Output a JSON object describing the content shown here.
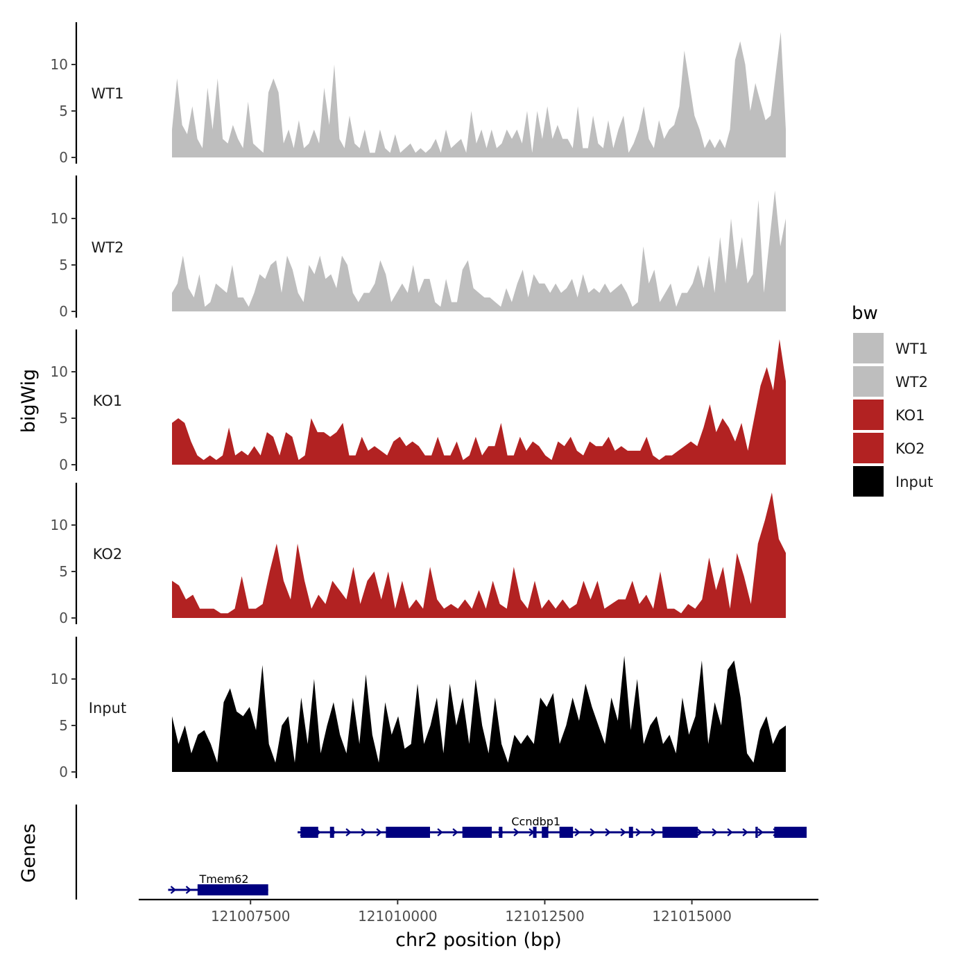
{
  "chart_data": {
    "type": "area",
    "xlabel": "chr2 position (bp)",
    "ylabel": "bigWig",
    "genes_label": "Genes",
    "x_range": [
      121006200,
      121016900
    ],
    "xlim": [
      121005600,
      121017150
    ],
    "x_ticks": [
      121007500,
      121010000,
      121012500,
      121015000
    ],
    "x_tick_labels": [
      "121007500",
      "121010000",
      "121012500",
      "121015000"
    ],
    "y_ticks": [
      0,
      5,
      10
    ],
    "y_tick_labels": [
      "0",
      "5",
      "10"
    ],
    "ylim": [
      0,
      14.5
    ],
    "legend_title": "bw",
    "legend": [
      {
        "label": "WT1",
        "color": "#bebebe"
      },
      {
        "label": "WT2",
        "color": "#bebebe"
      },
      {
        "label": "KO1",
        "color": "#b22222"
      },
      {
        "label": "KO2",
        "color": "#b22222"
      },
      {
        "label": "Input",
        "color": "#000000"
      }
    ],
    "series": [
      {
        "name": "WT1",
        "color": "#bebebe",
        "values": [
          3,
          8.5,
          3.5,
          2.5,
          5.5,
          2,
          1,
          7.5,
          3,
          8.5,
          2,
          1.5,
          3.5,
          2,
          1,
          6,
          1.5,
          1,
          0.5,
          7,
          8.5,
          7,
          1.5,
          3,
          1,
          4,
          1,
          1.5,
          3,
          1.5,
          7.5,
          3.5,
          10,
          2,
          1,
          4.5,
          1.5,
          1,
          3,
          0.5,
          0.5,
          3,
          1,
          0.5,
          2.5,
          0.5,
          1,
          1.5,
          0.5,
          1,
          0.5,
          1,
          2,
          0.5,
          3,
          1,
          1.5,
          2,
          0.5,
          5,
          1.5,
          3,
          1,
          3,
          1,
          1.5,
          3,
          2,
          3,
          1.5,
          5,
          0.5,
          5,
          2,
          5.5,
          2,
          3.5,
          2,
          2,
          1,
          5.5,
          1,
          1,
          4.5,
          1.5,
          1,
          4,
          1,
          3,
          4.5,
          0.5,
          1.5,
          3,
          5.5,
          2,
          1,
          4,
          2,
          3,
          3.5,
          5.5,
          11.5,
          8,
          4.5,
          3,
          1,
          2,
          1,
          2,
          1,
          3,
          10.5,
          12.5,
          10,
          5,
          8,
          6,
          4,
          4.5,
          9,
          13.5,
          3
        ]
      },
      {
        "name": "WT2",
        "color": "#bebebe",
        "values": [
          2,
          3,
          6,
          2.5,
          1.5,
          4,
          0.5,
          1,
          3,
          2.5,
          2,
          5,
          1.5,
          1.5,
          0.5,
          2,
          4,
          3.5,
          5,
          5.5,
          2,
          6,
          4.5,
          2,
          1,
          5,
          4,
          6,
          3.5,
          4,
          2.5,
          6,
          5,
          2,
          1,
          2,
          2,
          3,
          5.5,
          4,
          1,
          2,
          3,
          2,
          5,
          2,
          3.5,
          3.5,
          1,
          0.5,
          3.5,
          1,
          1,
          4.5,
          5.5,
          2.5,
          2,
          1.5,
          1.5,
          1,
          0.5,
          2.5,
          1,
          3,
          4.5,
          1.5,
          4,
          3,
          3,
          2,
          3,
          2,
          2.5,
          3.5,
          1.5,
          4,
          2,
          2.5,
          2,
          3,
          2,
          2.5,
          3,
          2,
          0.5,
          1,
          7,
          3,
          4.5,
          1,
          2,
          3,
          0.5,
          2,
          2,
          3,
          5,
          2.5,
          6,
          2,
          8,
          3,
          10,
          4.5,
          8,
          3,
          4,
          12,
          2,
          7.5,
          13,
          7,
          10
        ]
      },
      {
        "name": "KO1",
        "color": "#b22222",
        "values": [
          4.5,
          5,
          4.5,
          2.5,
          1,
          0.5,
          1,
          0.5,
          1,
          4,
          1,
          1.5,
          1,
          2,
          1,
          3.5,
          3,
          1,
          3.5,
          3,
          0.5,
          1,
          5,
          3.5,
          3.5,
          3,
          3.5,
          4.5,
          1,
          1,
          3,
          1.5,
          2,
          1.5,
          1,
          2.5,
          3,
          2,
          2.5,
          2,
          1,
          1,
          3,
          1,
          1,
          2.5,
          0.5,
          1,
          3,
          1,
          2,
          2,
          4.5,
          1,
          1,
          3,
          1.5,
          2.5,
          2,
          1,
          0.5,
          2.5,
          2,
          3,
          1.5,
          1,
          2.5,
          2,
          2,
          3,
          1.5,
          2,
          1.5,
          1.5,
          1.5,
          3,
          1,
          0.5,
          1,
          1,
          1.5,
          2,
          2.5,
          2,
          4,
          6.5,
          3.5,
          5,
          4,
          2.5,
          4.5,
          1.5,
          5,
          8.5,
          10.5,
          8,
          13.5,
          9
        ]
      },
      {
        "name": "KO2",
        "color": "#b22222",
        "values": [
          4,
          3.5,
          2,
          2.5,
          1,
          1,
          1,
          0.5,
          0.5,
          1,
          4.5,
          1,
          1,
          1.5,
          5,
          8,
          4,
          2,
          8,
          4,
          1,
          2.5,
          1.5,
          4,
          3,
          2,
          5.5,
          1.5,
          4,
          5,
          2,
          5,
          1,
          4,
          1,
          2,
          1,
          5.5,
          2,
          1,
          1.5,
          1,
          2,
          1,
          3,
          1,
          4,
          1.5,
          1,
          5.5,
          2,
          1,
          4,
          1,
          2,
          1,
          2,
          1,
          1.5,
          4,
          2,
          4,
          1,
          1.5,
          2,
          2,
          4,
          1.5,
          2.5,
          1,
          5,
          1,
          1,
          0.5,
          1.5,
          1,
          2,
          6.5,
          3,
          5.5,
          1,
          7,
          4.5,
          1.5,
          8,
          10.5,
          13.5,
          8.5,
          7
        ]
      },
      {
        "name": "Input",
        "color": "#000000",
        "values": [
          6,
          3,
          5,
          2,
          4,
          4.5,
          3,
          1,
          7.5,
          9,
          6.5,
          6,
          7,
          4.5,
          11.5,
          3,
          1,
          5,
          6,
          1,
          8,
          3,
          10,
          2,
          5,
          7.5,
          4,
          2,
          8,
          3,
          10.5,
          4,
          1,
          7.5,
          4,
          6,
          2.5,
          3,
          9.5,
          3,
          5,
          8,
          2,
          9.5,
          5,
          8,
          3,
          10,
          5,
          2,
          8,
          3,
          1,
          4,
          3,
          4,
          3,
          8,
          7,
          8.5,
          3,
          5,
          8,
          5.5,
          9.5,
          7,
          5,
          3,
          8,
          5.5,
          12.5,
          4.5,
          10,
          3,
          5,
          6,
          3,
          4,
          2,
          8,
          4,
          6,
          12,
          3,
          7.5,
          5,
          11,
          12,
          8,
          2,
          1,
          4.5,
          6,
          3,
          4.5,
          5
        ]
      }
    ],
    "genes": [
      {
        "name": "Tmem62",
        "strand": "+",
        "start": 121006100,
        "end": 121007800,
        "exons": [
          [
            121006600,
            121007800
          ]
        ],
        "row": 2
      },
      {
        "name": "Ccndbp1",
        "strand": "+",
        "start": 121008300,
        "end": 121016950,
        "exons": [
          [
            121008350,
            121008650
          ],
          [
            121008850,
            121008920
          ],
          [
            121009800,
            121010550
          ],
          [
            121011100,
            121011600
          ],
          [
            121011720,
            121011780
          ],
          [
            121012300,
            121012360
          ],
          [
            121012450,
            121012560
          ],
          [
            121012750,
            121012980
          ],
          [
            121013930,
            121014000
          ],
          [
            121014500,
            121015100
          ],
          [
            121016080,
            121016120
          ],
          [
            121016400,
            121016950
          ]
        ],
        "row": 1
      }
    ]
  }
}
